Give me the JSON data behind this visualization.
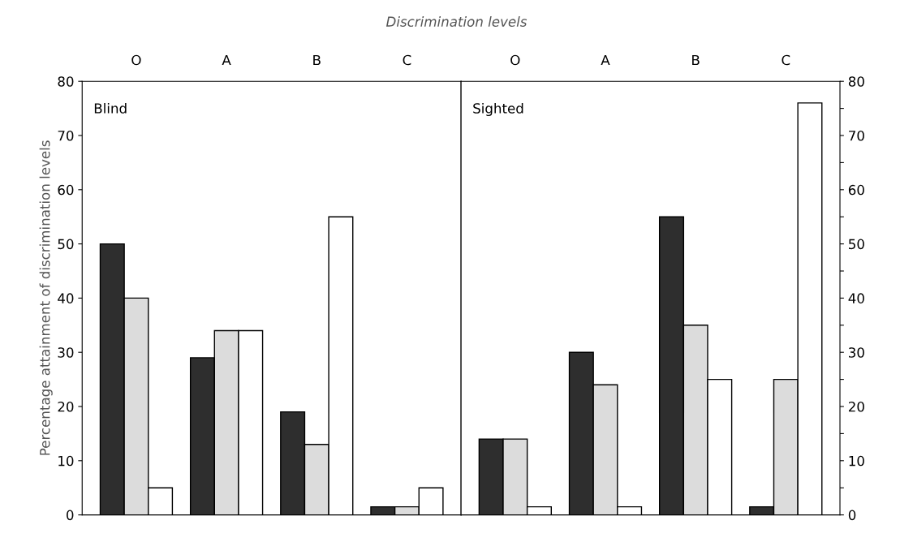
{
  "chart_data": [
    {
      "type": "bar",
      "title": "Discrimination levels",
      "ylabel": "Percentage attainment of discrimination levels",
      "annotations": [
        "Blind"
      ],
      "categories": [
        "O",
        "A",
        "B",
        "C"
      ],
      "series": [
        {
          "color": "#2e2e2e",
          "values": [
            50,
            29,
            19,
            1.5
          ]
        },
        {
          "color": "#dcdcdc",
          "values": [
            40,
            34,
            13,
            1.5
          ]
        },
        {
          "color": "#ffffff",
          "values": [
            5,
            34,
            55,
            5
          ]
        }
      ],
      "ylim": [
        0,
        80
      ],
      "yticks": [
        0,
        10,
        20,
        30,
        40,
        50,
        60,
        70,
        80
      ]
    },
    {
      "type": "bar",
      "annotations": [
        "Sighted"
      ],
      "categories": [
        "O",
        "A",
        "B",
        "C"
      ],
      "series": [
        {
          "color": "#2e2e2e",
          "values": [
            14,
            30,
            55,
            1.5
          ]
        },
        {
          "color": "#dcdcdc",
          "values": [
            14,
            24,
            35,
            25
          ]
        },
        {
          "color": "#ffffff",
          "values": [
            1.5,
            1.5,
            25,
            76
          ]
        }
      ],
      "ylim": [
        0,
        80
      ],
      "yticks": [
        0,
        {
          "value": 5,
          "label": null
        },
        10,
        {
          "value": 15,
          "label": null
        },
        20,
        {
          "value": 25,
          "label": null
        },
        30,
        {
          "value": 35,
          "label": null
        },
        40,
        {
          "value": 45,
          "label": null
        },
        50,
        {
          "value": 55,
          "label": null
        },
        60,
        {
          "value": 65,
          "label": null
        },
        70,
        {
          "value": 75,
          "label": null
        },
        80
      ]
    }
  ]
}
